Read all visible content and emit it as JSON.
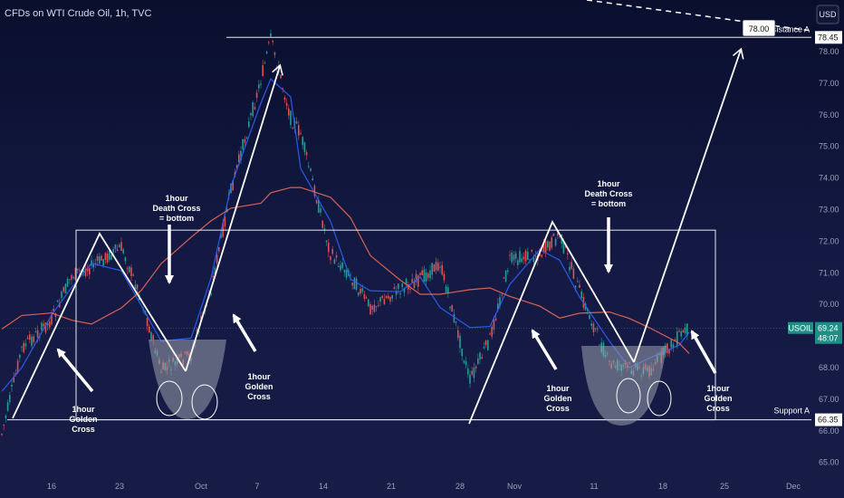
{
  "header": {
    "title": "CFDs on WTI Crude Oil, 1h, TVC",
    "currency": "USD"
  },
  "chart_data": {
    "type": "line",
    "symbol": "USOIL",
    "ylim": [
      64.7,
      79.5
    ],
    "y_ticks": [
      "65.00",
      "66.00",
      "67.00",
      "68.00",
      "69.00",
      "70.00",
      "71.00",
      "72.00",
      "73.00",
      "74.00",
      "75.00",
      "76.00",
      "77.00",
      "78.00"
    ],
    "x_ticks": [
      "16",
      "23",
      "Oct",
      "7",
      "14",
      "21",
      "28",
      "Nov",
      "11",
      "18",
      "25",
      "Dec"
    ],
    "price_labels": {
      "last": "69.24",
      "countdown": "48:07",
      "resistance": "78.45",
      "support": "66.35",
      "target": "78.00"
    },
    "series": [
      {
        "name": "",
        "x": [
          "Sep 11",
          "Sep 13",
          "Sep 16",
          "Sep 18",
          "Sep 20",
          "Sep 23",
          "Sep 25",
          "Sep 27",
          "Sep 30",
          "Oct 2",
          "Oct 4",
          "Oct 7",
          "Oct 8",
          "Oct 10",
          "Oct 11",
          "Oct 14",
          "Oct 16",
          "Oct 18",
          "Oct 21",
          "Oct 23",
          "Oct 25",
          "Oct 28",
          "Oct 30",
          "Nov 1",
          "Nov 4",
          "Nov 6",
          "Nov 8",
          "Nov 11",
          "Nov 13",
          "Nov 15",
          "Nov 18",
          "Nov 19"
        ],
        "values": [
          65.9,
          68.6,
          69.5,
          70.9,
          71.2,
          71.8,
          70.2,
          67.9,
          68.4,
          70.5,
          73.6,
          77.1,
          78.4,
          75.9,
          75.4,
          71.6,
          70.9,
          69.9,
          70.5,
          70.8,
          71.3,
          67.6,
          68.9,
          71.4,
          71.6,
          72.2,
          70.4,
          68.1,
          68.0,
          67.9,
          69.0,
          69.24
        ]
      }
    ],
    "levels": {
      "range_top": 72.35,
      "range_bottom": 66.35,
      "resistance": 78.45
    },
    "annotations": [
      {
        "text": "1hour\nGolden\nCross"
      },
      {
        "text": "1hour\nDeath Cross\n= bottom"
      },
      {
        "text": "1hour\nGolden\nCross"
      },
      {
        "text": "1hour\nDeath Cross\n= bottom"
      },
      {
        "text": "1hour\nGolden\nCross"
      },
      {
        "text": "1hour\nGolden\nCross"
      }
    ],
    "resistance_label": "Resistance A",
    "support_label": "Support A",
    "grid": false,
    "colors": {
      "up": "#26a69a",
      "down": "#ef5350",
      "ma_fast": "#2962ff",
      "ma_slow": "#f06a52",
      "pattern": "#ffffff",
      "last_badge": "#1f8f86"
    }
  }
}
